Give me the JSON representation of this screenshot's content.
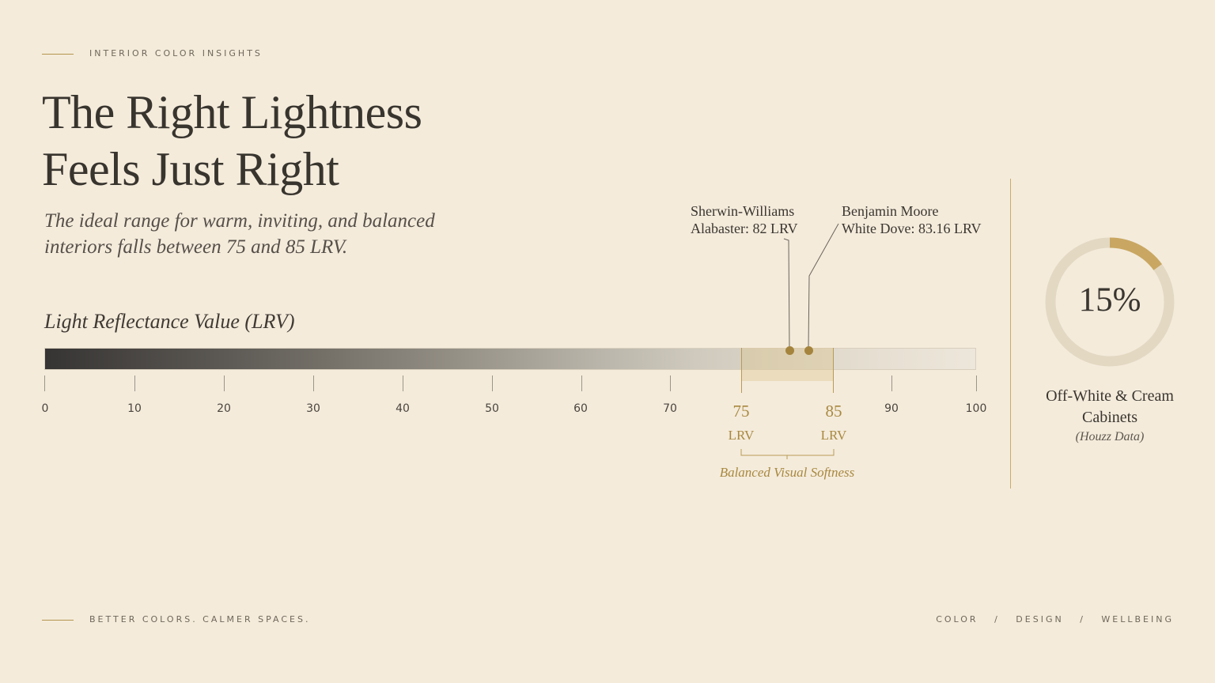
{
  "header": {
    "eyebrow": "INTERIOR COLOR INSIGHTS"
  },
  "title": {
    "line1": "The Right Lightness",
    "line2": "Feels Just Right"
  },
  "subtitle": {
    "line1": "The ideal range for warm, inviting, and balanced",
    "line2": "interiors falls between 75 and 85 LRV."
  },
  "scale": {
    "heading": "Light Reflectance Value (LRV)",
    "min": 0,
    "max": 100,
    "ticks": [
      "0",
      "10",
      "20",
      "30",
      "40",
      "50",
      "60",
      "70",
      "90",
      "100"
    ],
    "range": {
      "low": "75",
      "high": "85",
      "unit": "LRV",
      "label": "Balanced Visual Softness"
    },
    "range_values": [
      75,
      85
    ]
  },
  "callouts": [
    {
      "brand": "Sherwin-Williams",
      "detail": "Alabaster: 82 LRV",
      "value": 82
    },
    {
      "brand": "Benjamin Moore",
      "detail": "White Dove: 83.16 LRV",
      "value": 83.16
    }
  ],
  "stat": {
    "value": "15%",
    "fraction": 0.15,
    "caption_line1": "Off-White & Cream",
    "caption_line2": "Cabinets",
    "source": "(Houzz Data)"
  },
  "footer": {
    "tagline": "BETTER COLORS. CALMER SPACES.",
    "nav": [
      "COLOR",
      "DESIGN",
      "WELLBEING"
    ],
    "separator": "/"
  },
  "colors": {
    "accent": "#b5954f",
    "background": "#f4ebdb",
    "ring_track": "#e3d8c2"
  }
}
